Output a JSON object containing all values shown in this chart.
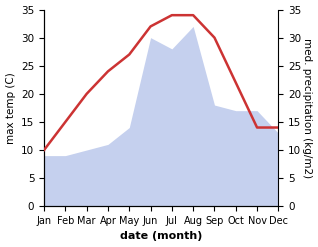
{
  "months": [
    "Jan",
    "Feb",
    "Mar",
    "Apr",
    "May",
    "Jun",
    "Jul",
    "Aug",
    "Sep",
    "Oct",
    "Nov",
    "Dec"
  ],
  "temp": [
    10,
    15,
    20,
    24,
    27,
    32,
    34,
    34,
    30,
    22,
    14,
    14
  ],
  "precip": [
    9,
    9,
    10,
    11,
    14,
    30,
    28,
    32,
    18,
    17,
    17,
    13
  ],
  "temp_color": "#cc3333",
  "precip_color": "#c5d0ee",
  "background_color": "#ffffff",
  "left_ylabel": "max temp (C)",
  "right_ylabel": "med. precipitation (kg/m2)",
  "xlabel": "date (month)",
  "ylim": [
    0,
    35
  ],
  "yticks": [
    0,
    5,
    10,
    15,
    20,
    25,
    30,
    35
  ]
}
